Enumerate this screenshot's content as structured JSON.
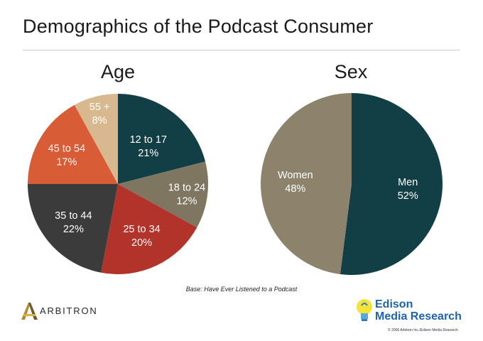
{
  "title": "Demographics of the Podcast Consumer",
  "footnote": "Base: Have Ever Listened to a Podcast",
  "logos": {
    "arbitron": "ARBITRON",
    "edison_line1": "Edison",
    "edison_line2": "Media Research",
    "copyright": "© 2006 Arbitron Inc./Edison Media Research"
  },
  "chart_data": [
    {
      "type": "pie",
      "title": "Age",
      "slices": [
        {
          "label": "12 to 17",
          "value": 21,
          "display": "21%",
          "color": "#123e46"
        },
        {
          "label": "18 to 24",
          "value": 12,
          "display": "12%",
          "color": "#7f7661"
        },
        {
          "label": "25 to 34",
          "value": 20,
          "display": "20%",
          "color": "#b2332a"
        },
        {
          "label": "35 to 44",
          "value": 22,
          "display": "22%",
          "color": "#3b3b3c"
        },
        {
          "label": "45 to 54",
          "value": 17,
          "display": "17%",
          "color": "#d85c36"
        },
        {
          "label": "55 +",
          "value": 8,
          "display": "8%",
          "color": "#d8b98f"
        }
      ]
    },
    {
      "type": "pie",
      "title": "Sex",
      "slices": [
        {
          "label": "Men",
          "value": 52,
          "display": "52%",
          "color": "#123e46"
        },
        {
          "label": "Women",
          "value": 48,
          "display": "48%",
          "color": "#8d826b"
        }
      ]
    }
  ]
}
